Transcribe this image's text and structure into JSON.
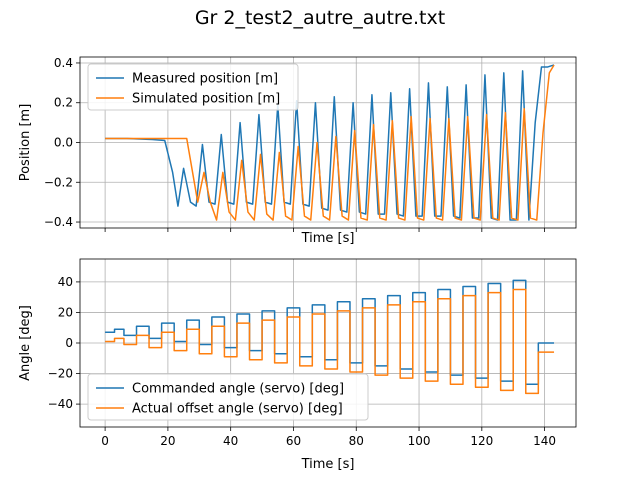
{
  "figure_title": "Gr 2_test2_autre_autre.txt",
  "chart_data": [
    {
      "type": "line",
      "xlabel": "Time [s]",
      "ylabel": "Position [m]",
      "xlim": [
        -8,
        150
      ],
      "ylim": [
        -0.43,
        0.43
      ],
      "xticks": [
        0,
        20,
        40,
        60,
        80,
        100,
        120,
        140
      ],
      "yticks": [
        -0.4,
        -0.2,
        0.0,
        0.2,
        0.4
      ],
      "ytick_labels": [
        "−0.4",
        "−0.2",
        "0.0",
        "0.2",
        "0.4"
      ],
      "grid": true,
      "legend_position": "top-left",
      "series": [
        {
          "name": "Measured position [m]",
          "color": "#1f77b4",
          "x": [
            0,
            7,
            15,
            19,
            21.5,
            23.2,
            25,
            27.2,
            29,
            31,
            33.1,
            35,
            37,
            39,
            41,
            43,
            45,
            47,
            49,
            51,
            53,
            55,
            57,
            59,
            61,
            63,
            65,
            67,
            69,
            71,
            73,
            75,
            77,
            79,
            81,
            83,
            85,
            87,
            89,
            91,
            93,
            95,
            97,
            99,
            101,
            103,
            105,
            107,
            109,
            111,
            113,
            115,
            117,
            119,
            121,
            123,
            125,
            127,
            129,
            131,
            133,
            135,
            137,
            139,
            141,
            143
          ],
          "y": [
            0.02,
            0.02,
            0.015,
            0.01,
            -0.15,
            -0.32,
            -0.13,
            -0.3,
            -0.32,
            -0.01,
            -0.3,
            -0.31,
            0.04,
            -0.3,
            -0.31,
            0.1,
            -0.3,
            -0.31,
            0.14,
            -0.3,
            -0.31,
            0.19,
            -0.3,
            -0.31,
            0.21,
            -0.31,
            -0.32,
            0.2,
            -0.33,
            -0.34,
            0.23,
            -0.34,
            -0.35,
            0.2,
            -0.35,
            -0.36,
            0.24,
            -0.36,
            -0.36,
            0.25,
            -0.36,
            -0.37,
            0.27,
            -0.37,
            -0.37,
            0.3,
            -0.37,
            -0.37,
            0.28,
            -0.37,
            -0.38,
            0.29,
            -0.38,
            -0.38,
            0.34,
            -0.38,
            -0.39,
            0.35,
            -0.39,
            -0.39,
            0.36,
            -0.39,
            0.1,
            0.38,
            0.38,
            0.39
          ]
        },
        {
          "name": "Simulated position [m]",
          "color": "#ff7f0e",
          "x": [
            0,
            20,
            26,
            29.5,
            31.5,
            33.5,
            35.5,
            37.5,
            39.5,
            41.5,
            43.5,
            45.5,
            47.5,
            49.5,
            51.5,
            53.5,
            55.5,
            57.5,
            59.5,
            61.5,
            63.5,
            65.5,
            67.5,
            69.5,
            71.5,
            73.5,
            75.5,
            77.5,
            79.5,
            81.5,
            83.5,
            85.5,
            87.5,
            89.5,
            91.5,
            93.5,
            95.5,
            97.5,
            99.5,
            101.5,
            103.5,
            105.5,
            107.5,
            109.5,
            111.5,
            113.5,
            115.5,
            117.5,
            119.5,
            121.5,
            123.5,
            125.5,
            127.5,
            129.5,
            131.5,
            133.5,
            135.5,
            137.5,
            139.5,
            141.5,
            143
          ],
          "y": [
            0.02,
            0.02,
            0.02,
            -0.3,
            -0.15,
            -0.3,
            -0.39,
            -0.15,
            -0.35,
            -0.39,
            -0.09,
            -0.35,
            -0.39,
            -0.06,
            -0.36,
            -0.39,
            -0.05,
            -0.37,
            -0.39,
            -0.02,
            -0.37,
            -0.39,
            0.0,
            -0.37,
            -0.39,
            0.03,
            -0.37,
            -0.39,
            0.06,
            -0.38,
            -0.39,
            0.09,
            -0.38,
            -0.39,
            0.11,
            -0.38,
            -0.39,
            0.13,
            -0.38,
            -0.39,
            0.12,
            -0.38,
            -0.39,
            0.12,
            -0.38,
            -0.39,
            0.13,
            -0.38,
            -0.39,
            0.14,
            -0.38,
            -0.39,
            0.15,
            -0.38,
            -0.39,
            0.17,
            -0.38,
            -0.39,
            0.05,
            0.35,
            0.39
          ]
        }
      ]
    },
    {
      "type": "line",
      "xlabel": "Time [s]",
      "ylabel": "Angle [deg]",
      "xlim": [
        -8,
        150
      ],
      "ylim": [
        -55,
        55
      ],
      "xticks": [
        0,
        20,
        40,
        60,
        80,
        100,
        120,
        140
      ],
      "yticks": [
        -40,
        -20,
        0,
        20,
        40
      ],
      "ytick_labels": [
        "−40",
        "−20",
        "0",
        "20",
        "40"
      ],
      "grid": true,
      "legend_position": "bottom-left",
      "series": [
        {
          "name": "Commanded angle (servo) [deg]",
          "color": "#1f77b4",
          "steps": [
            [
              0,
              7
            ],
            [
              3,
              9
            ],
            [
              6,
              5
            ],
            [
              10,
              11
            ],
            [
              14,
              3
            ],
            [
              18,
              13
            ],
            [
              22,
              1
            ],
            [
              26,
              15
            ],
            [
              30,
              -1
            ],
            [
              34,
              17
            ],
            [
              38,
              -3
            ],
            [
              42,
              19
            ],
            [
              46,
              -5
            ],
            [
              50,
              21
            ],
            [
              54,
              -7
            ],
            [
              58,
              23
            ],
            [
              62,
              -9
            ],
            [
              66,
              25
            ],
            [
              70,
              -11
            ],
            [
              74,
              27
            ],
            [
              78,
              -13
            ],
            [
              82,
              29
            ],
            [
              86,
              -15
            ],
            [
              90,
              31
            ],
            [
              94,
              -17
            ],
            [
              98,
              33
            ],
            [
              102,
              -19
            ],
            [
              106,
              35
            ],
            [
              110,
              -21
            ],
            [
              114,
              37
            ],
            [
              118,
              -23
            ],
            [
              122,
              39
            ],
            [
              126,
              -25
            ],
            [
              130,
              41
            ],
            [
              134,
              -27
            ],
            [
              138,
              0
            ],
            [
              143,
              0
            ]
          ]
        },
        {
          "name": "Actual offset angle (servo) [deg]",
          "color": "#ff7f0e",
          "steps": [
            [
              0,
              1
            ],
            [
              3,
              3
            ],
            [
              6,
              -1
            ],
            [
              10,
              5
            ],
            [
              14,
              -3
            ],
            [
              18,
              7
            ],
            [
              22,
              -5
            ],
            [
              26,
              9
            ],
            [
              30,
              -7
            ],
            [
              34,
              11
            ],
            [
              38,
              -9
            ],
            [
              42,
              13
            ],
            [
              46,
              -11
            ],
            [
              50,
              15
            ],
            [
              54,
              -13
            ],
            [
              58,
              17
            ],
            [
              62,
              -15
            ],
            [
              66,
              19
            ],
            [
              70,
              -17
            ],
            [
              74,
              21
            ],
            [
              78,
              -19
            ],
            [
              82,
              23
            ],
            [
              86,
              -21
            ],
            [
              90,
              25
            ],
            [
              94,
              -23
            ],
            [
              98,
              27
            ],
            [
              102,
              -25
            ],
            [
              106,
              29
            ],
            [
              110,
              -27
            ],
            [
              114,
              31
            ],
            [
              118,
              -29
            ],
            [
              122,
              33
            ],
            [
              126,
              -31
            ],
            [
              130,
              35
            ],
            [
              134,
              -33
            ],
            [
              138,
              -6
            ],
            [
              143,
              -6
            ]
          ]
        }
      ]
    }
  ]
}
